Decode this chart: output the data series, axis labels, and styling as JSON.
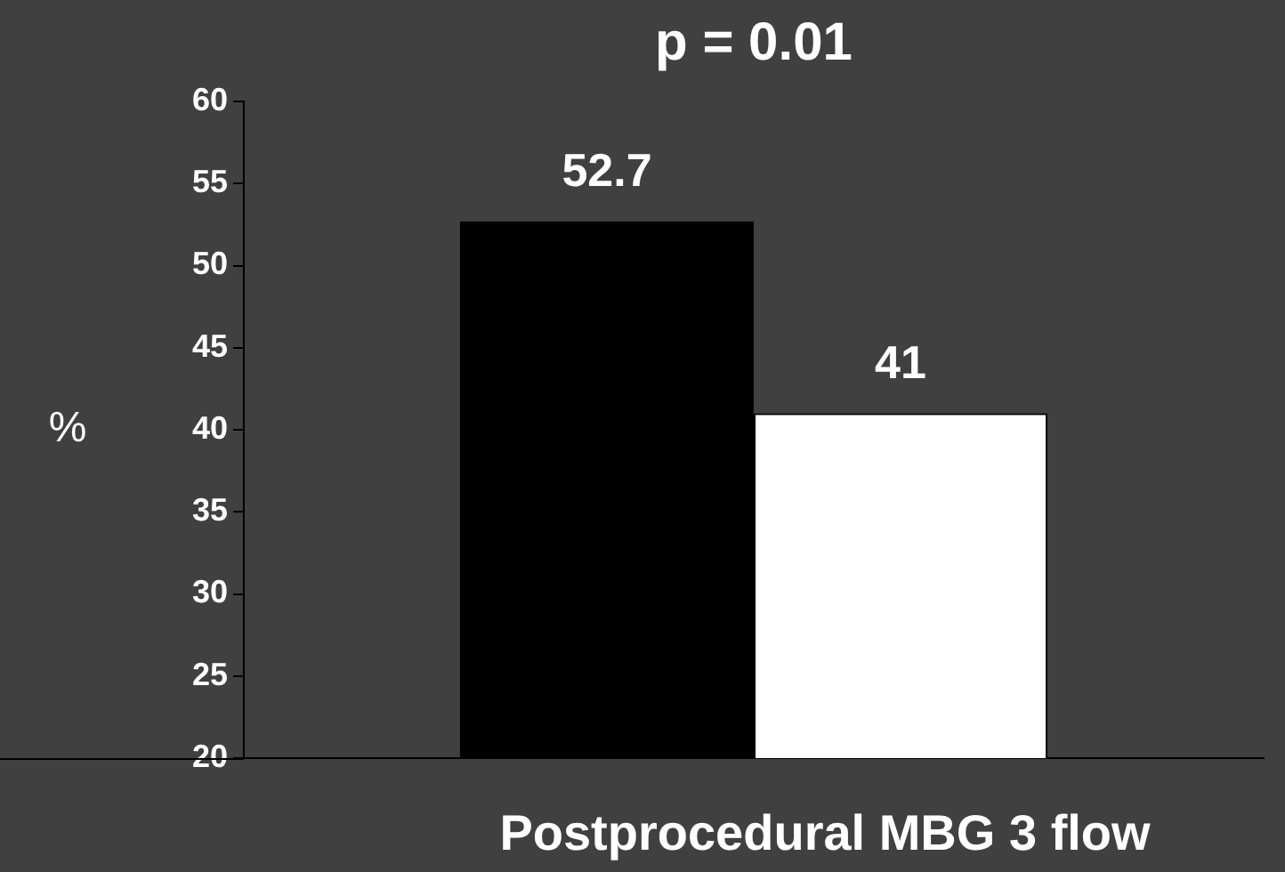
{
  "chart_data": {
    "type": "bar",
    "title": "p = 0.01",
    "xlabel": "Postprocedural MBG 3 flow",
    "ylabel": "%",
    "categories": [
      null
    ],
    "series": [
      {
        "color": "#000000",
        "values": [
          52.7
        ]
      },
      {
        "color": "#ffffff",
        "values": [
          41
        ]
      }
    ],
    "ylim": [
      20,
      60
    ],
    "yticks": [
      20,
      25,
      30,
      35,
      40,
      45,
      50,
      55,
      60
    ],
    "data_labels": true,
    "grid": false,
    "legend": false
  }
}
